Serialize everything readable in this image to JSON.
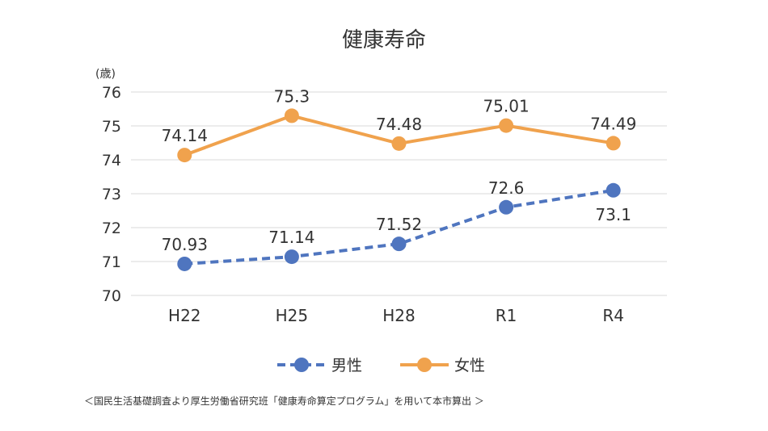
{
  "chart_data": {
    "type": "line",
    "title": "健康寿命",
    "ylabel": "(歳)",
    "xlabel": "",
    "categories": [
      "H22",
      "H25",
      "H28",
      "R1",
      "R4"
    ],
    "ylim": [
      70,
      76
    ],
    "yticks": [
      70,
      71,
      72,
      73,
      74,
      75,
      76
    ],
    "grid": true,
    "legend_position": "bottom",
    "series": [
      {
        "name": "男性",
        "values": [
          70.93,
          71.14,
          71.52,
          72.6,
          73.1
        ],
        "labels": [
          "70.93",
          "71.14",
          "71.52",
          "72.6",
          "73.1"
        ],
        "color": "#4f75bf",
        "style": "dashed"
      },
      {
        "name": "女性",
        "values": [
          74.14,
          75.3,
          74.48,
          75.01,
          74.49
        ],
        "labels": [
          "74.14",
          "75.3",
          "74.48",
          "75.01",
          "74.49"
        ],
        "color": "#f0a24d",
        "style": "solid"
      }
    ]
  },
  "source_note": "＜国民生活基礎調査より厚生労働省研究班「健康寿命算定プログラム」を用いて本市算出 ＞"
}
